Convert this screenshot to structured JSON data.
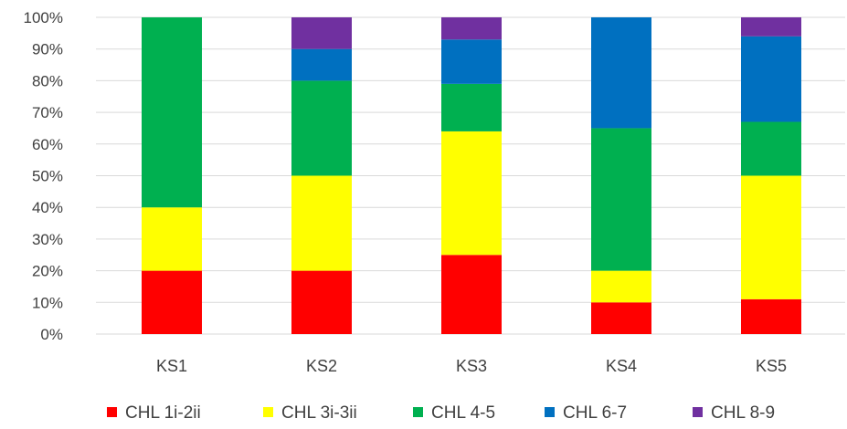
{
  "chart_data": {
    "type": "bar",
    "stacked": true,
    "percent_stacked": true,
    "categories": [
      "KS1",
      "KS2",
      "KS3",
      "KS4",
      "KS5"
    ],
    "series": [
      {
        "name": "CHL 1i-2ii",
        "color": "#ff0000",
        "values": [
          20,
          20,
          25,
          10,
          11
        ]
      },
      {
        "name": "CHL 3i-3ii",
        "color": "#ffff00",
        "values": [
          20,
          30,
          39,
          10,
          39
        ]
      },
      {
        "name": "CHL 4-5",
        "color": "#00b050",
        "values": [
          60,
          30,
          15,
          45,
          17
        ]
      },
      {
        "name": "CHL 6-7",
        "color": "#0070c0",
        "values": [
          0,
          10,
          14,
          35,
          27
        ]
      },
      {
        "name": "CHL 8-9",
        "color": "#7030a0",
        "values": [
          0,
          10,
          7,
          0,
          6
        ]
      }
    ],
    "y_ticks": [
      "0%",
      "10%",
      "20%",
      "30%",
      "40%",
      "50%",
      "60%",
      "70%",
      "80%",
      "90%",
      "100%"
    ],
    "ylim": [
      0,
      100
    ],
    "grid": true,
    "legend_position": "bottom"
  }
}
